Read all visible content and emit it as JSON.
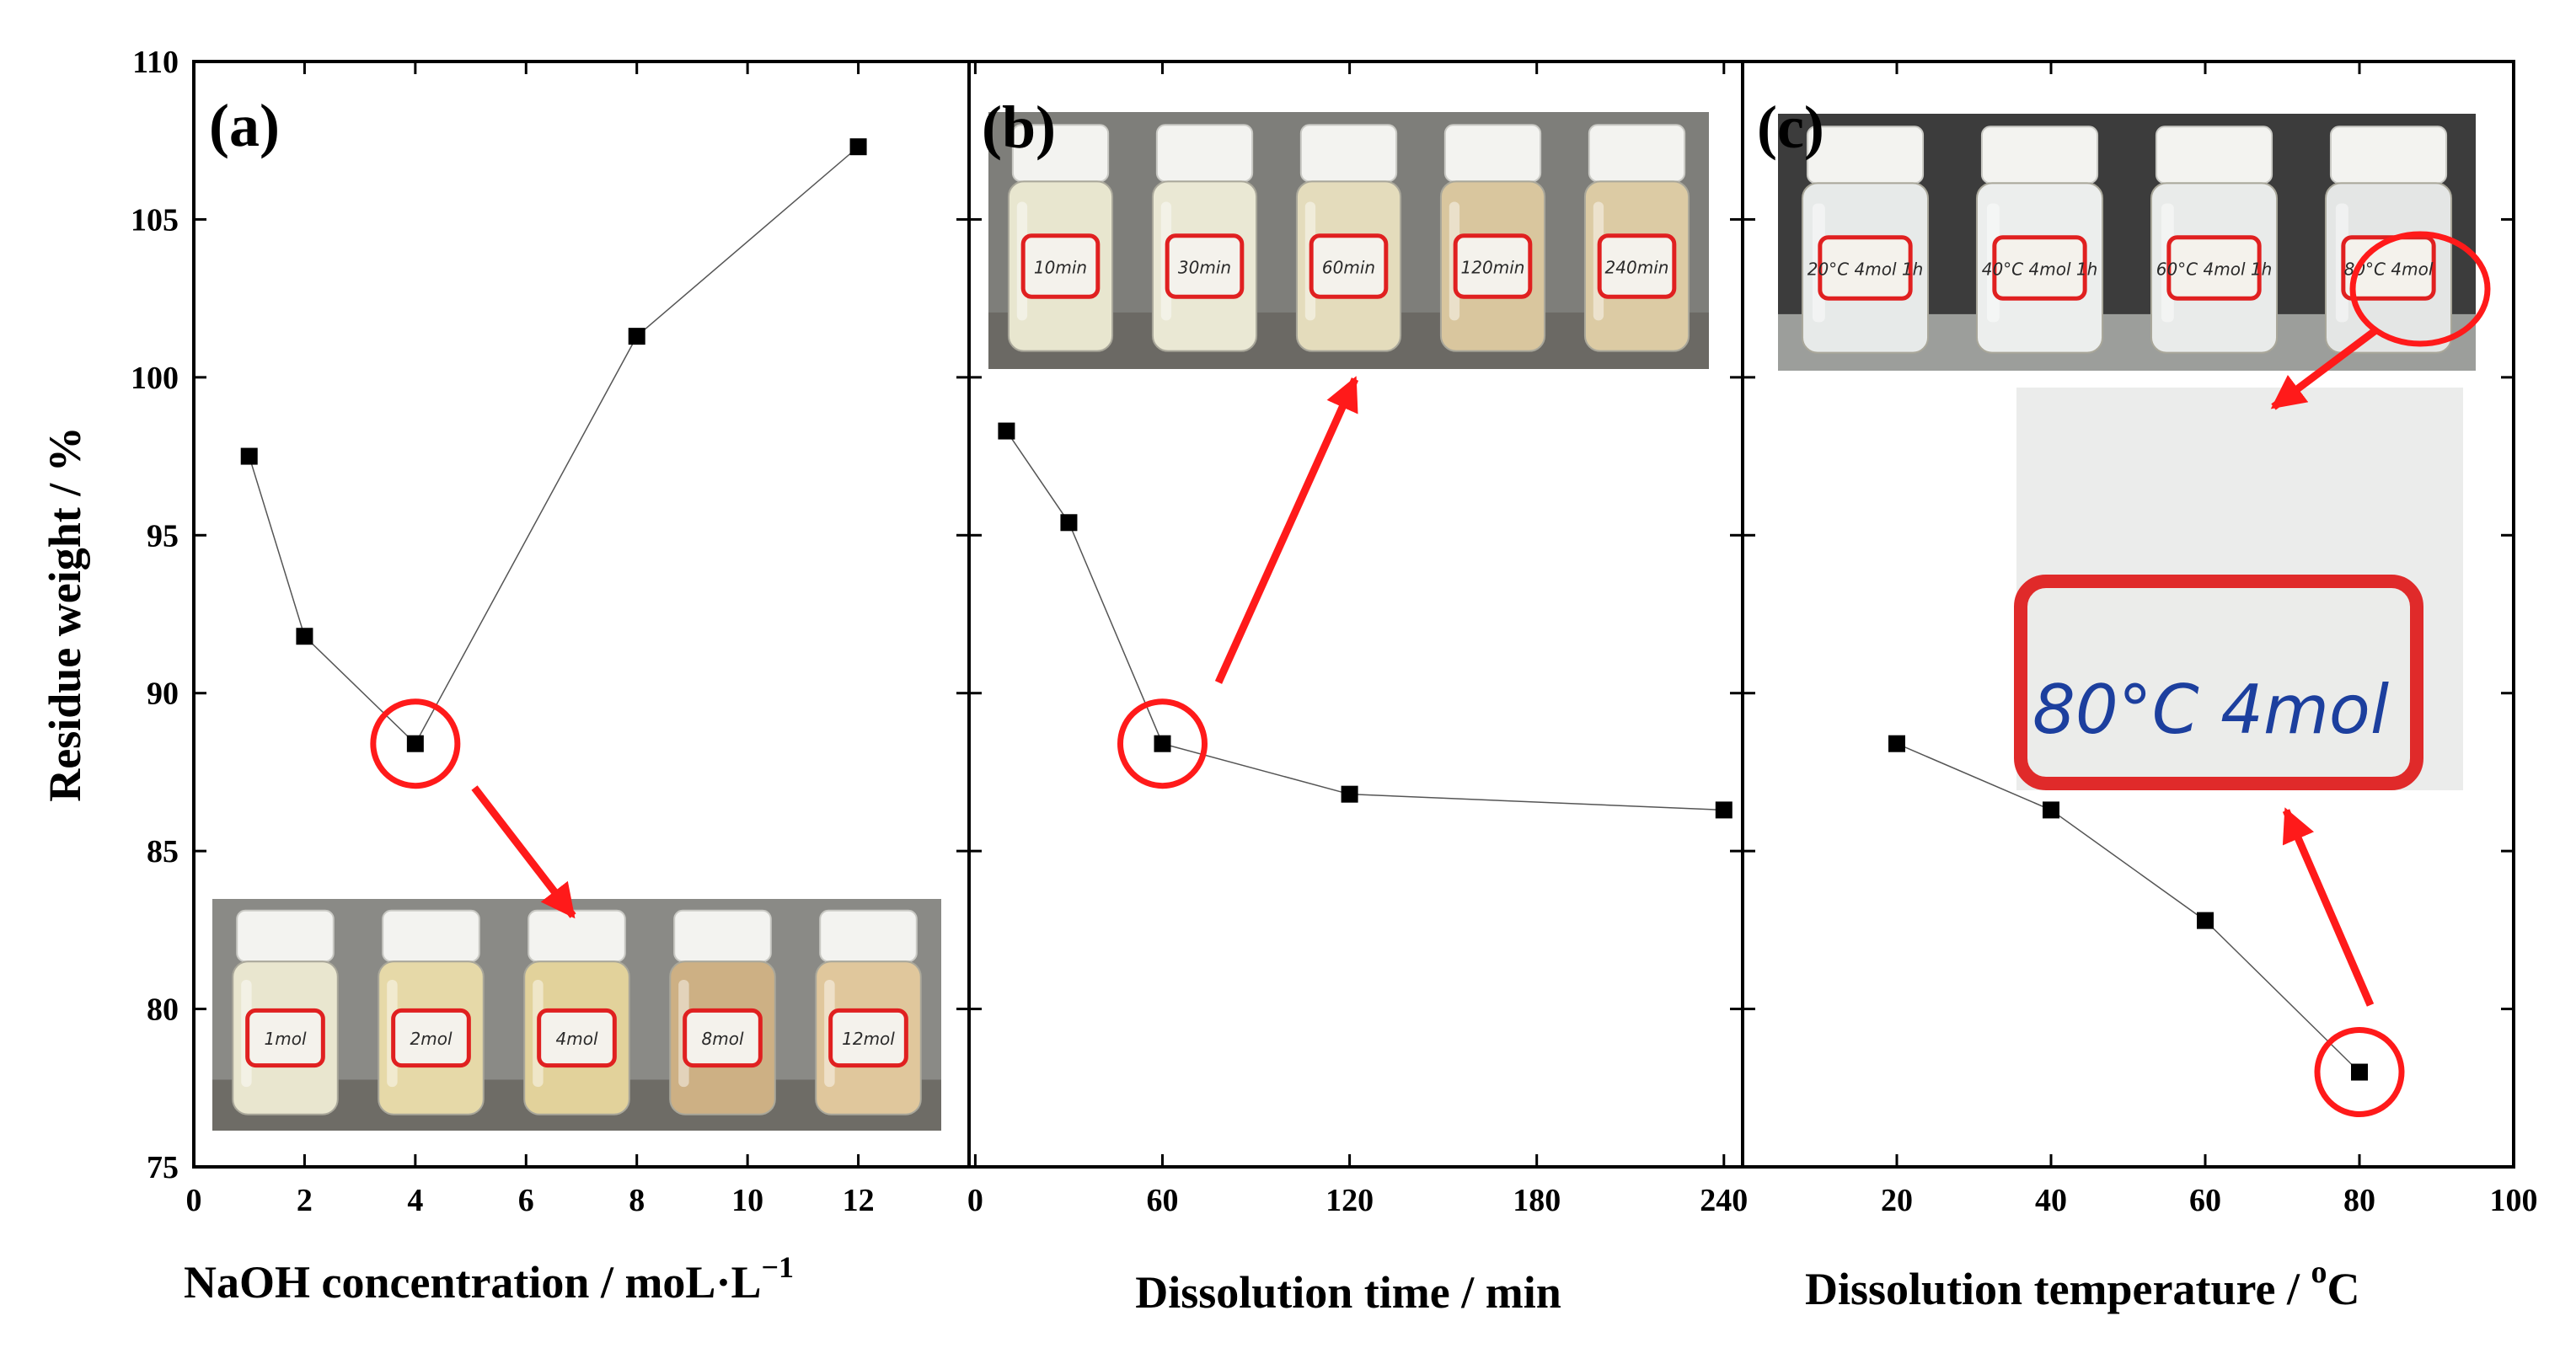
{
  "chart_data": [
    {
      "type": "line",
      "panel": "(a)",
      "xlabel_main": "NaOH concentration / moL·L",
      "xlabel_sup": "−1",
      "ylabel": "Residue weight / %",
      "xlim": [
        0,
        14
      ],
      "xticks": [
        0,
        2,
        4,
        6,
        8,
        10,
        12
      ],
      "xtick_labels": [
        "0",
        "2",
        "4",
        "6",
        "8",
        "10",
        "12"
      ],
      "ylim": [
        75,
        110
      ],
      "yticks": [
        75,
        80,
        85,
        90,
        95,
        100,
        105,
        110
      ],
      "ytick_labels": [
        "75",
        "80",
        "85",
        "90",
        "95",
        "100",
        "105",
        "110"
      ],
      "x": [
        1,
        2,
        4,
        8,
        12
      ],
      "y": [
        97.5,
        91.8,
        88.4,
        101.3,
        107.3
      ],
      "highlight_x": 4,
      "highlight_y": 88.4,
      "photo_labels": [
        "1mol",
        "2mol",
        "4mol",
        "8mol",
        "12mol"
      ],
      "photo_colors": [
        "#e9e6cf",
        "#e6d9a8",
        "#e2d29b",
        "#cdb084",
        "#e0c79c"
      ]
    },
    {
      "type": "line",
      "panel": "(b)",
      "xlabel": "Dissolution time / min",
      "xlim": [
        -2,
        246
      ],
      "xticks": [
        0,
        60,
        120,
        180,
        240
      ],
      "xtick_labels": [
        "0",
        "60",
        "120",
        "180",
        "240"
      ],
      "ylim": [
        75,
        110
      ],
      "x": [
        10,
        30,
        60,
        120,
        240
      ],
      "y": [
        98.3,
        95.4,
        88.4,
        86.8,
        86.3
      ],
      "highlight_x": 60,
      "highlight_y": 88.4,
      "photo_labels": [
        "10min",
        "30min",
        "60min",
        "120min",
        "240min"
      ],
      "photo_colors": [
        "#e8e6cf",
        "#eae8d4",
        "#e4dcbc",
        "#d9c69e",
        "#dccba4"
      ]
    },
    {
      "type": "line",
      "panel": "(c)",
      "xlabel_main": "Dissolution temperature / ",
      "xlabel_sup": "o",
      "xlabel_end": "C",
      "xlim": [
        0,
        100
      ],
      "xticks": [
        20,
        40,
        60,
        80,
        100
      ],
      "xtick_labels": [
        "20",
        "40",
        "60",
        "80",
        "100"
      ],
      "ylim": [
        75,
        110
      ],
      "x": [
        20,
        40,
        60,
        80
      ],
      "y": [
        88.4,
        86.3,
        82.8,
        78.0
      ],
      "highlight_x": 80,
      "highlight_y": 78.0,
      "photo_labels": [
        "20°C 4mol 1h",
        "40°C 4mol 1h",
        "60°C 4mol 1h",
        "80°C 4mol"
      ],
      "photo_colors": [
        "#e7eae9",
        "#eceeed",
        "#e9ebea",
        "#e4e6e5"
      ],
      "zoom_label": "80°C 4mol"
    }
  ],
  "colors": {
    "axis": "#000000",
    "marker": "#000000",
    "line": "#555555",
    "highlight": "#ff1a1a"
  }
}
